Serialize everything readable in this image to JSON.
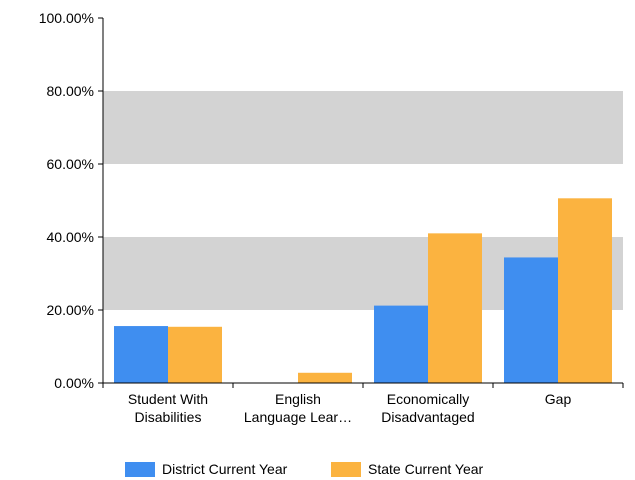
{
  "chart_data": {
    "type": "bar",
    "categories": [
      [
        "Student With",
        "Disabilities"
      ],
      [
        "English",
        "Language Lear…"
      ],
      [
        "Economically",
        "Disadvantaged"
      ],
      [
        "Gap"
      ]
    ],
    "series": [
      {
        "name": "District Current Year",
        "color": "#3f8ef0",
        "values": [
          15.6,
          0,
          21.2,
          34.4
        ]
      },
      {
        "name": "State Current Year",
        "color": "#fbb340",
        "values": [
          15.4,
          2.8,
          41.0,
          50.6
        ]
      }
    ],
    "ylim": [
      0,
      100
    ],
    "y_ticks": [
      0,
      20,
      40,
      60,
      80,
      100
    ],
    "y_tick_labels": [
      "0.00%",
      "20.00%",
      "40.00%",
      "60.00%",
      "80.00%",
      "100.00%"
    ],
    "grid": "alternating gray bands",
    "band_color": "#d3d3d3",
    "legend": "bottom"
  }
}
